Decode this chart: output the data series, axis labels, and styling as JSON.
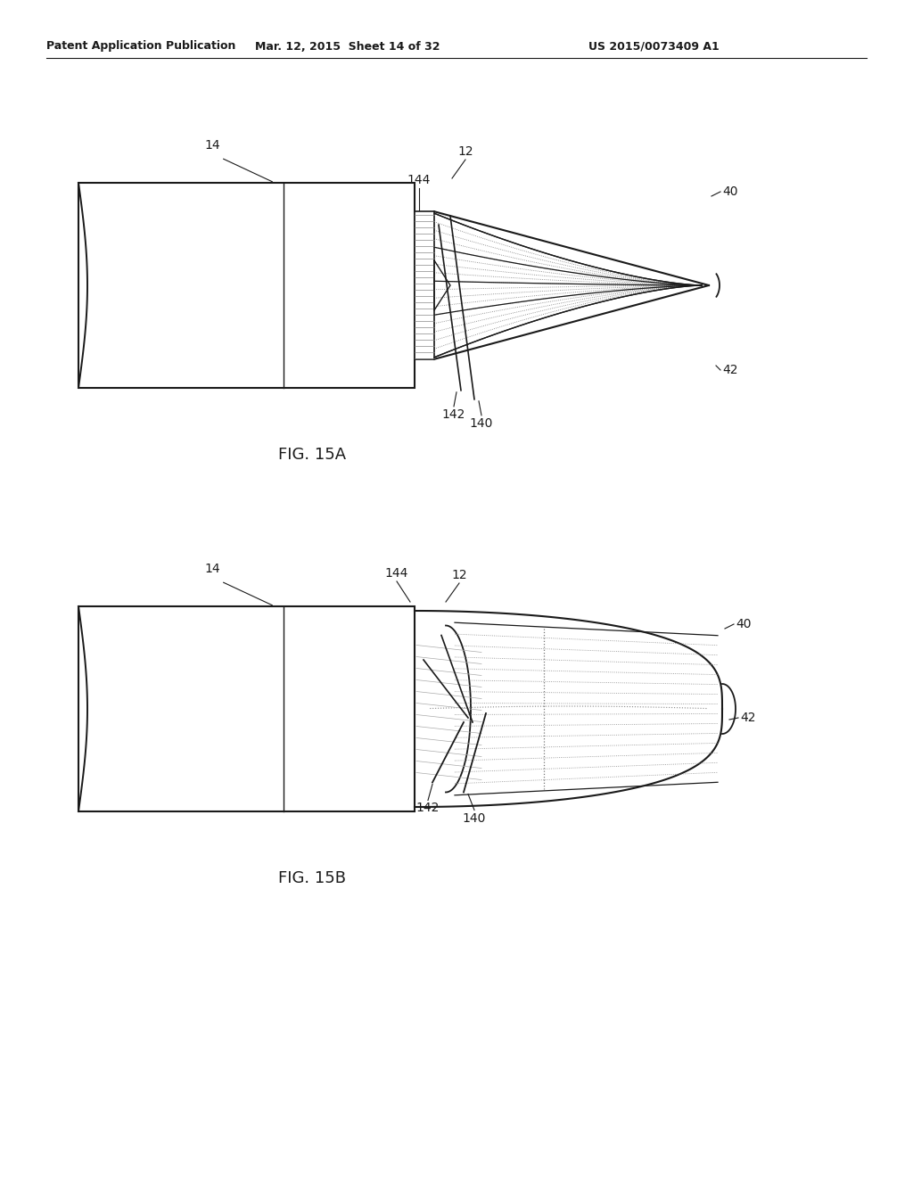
{
  "bg_color": "#ffffff",
  "line_color": "#1a1a1a",
  "header_left": "Patent Application Publication",
  "header_mid": "Mar. 12, 2015  Sheet 14 of 32",
  "header_right": "US 2015/0073409 A1",
  "fig_label_a": "FIG. 15A",
  "fig_label_b": "FIG. 15B",
  "font_size_header": 9,
  "font_size_label": 10,
  "font_size_fig": 13
}
